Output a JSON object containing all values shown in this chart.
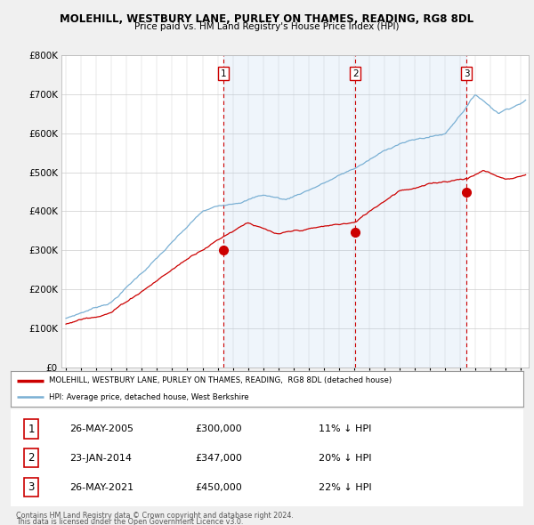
{
  "title": "MOLEHILL, WESTBURY LANE, PURLEY ON THAMES, READING, RG8 8DL",
  "subtitle": "Price paid vs. HM Land Registry's House Price Index (HPI)",
  "legend_line1": "MOLEHILL, WESTBURY LANE, PURLEY ON THAMES, READING,  RG8 8DL (detached house)",
  "legend_line2": "HPI: Average price, detached house, West Berkshire",
  "sale_labels": [
    "1",
    "2",
    "3"
  ],
  "sale_years": [
    2005.4,
    2014.07,
    2021.4
  ],
  "sale_prices": [
    300000,
    347000,
    450000
  ],
  "sale_display": [
    "26-MAY-2005",
    "23-JAN-2014",
    "26-MAY-2021"
  ],
  "sale_amounts": [
    "£300,000",
    "£347,000",
    "£450,000"
  ],
  "sale_hpi": [
    "11% ↓ HPI",
    "20% ↓ HPI",
    "22% ↓ HPI"
  ],
  "footnote1": "Contains HM Land Registry data © Crown copyright and database right 2024.",
  "footnote2": "This data is licensed under the Open Government Licence v3.0.",
  "line_color_red": "#cc0000",
  "line_color_blue": "#7ab0d4",
  "fill_color": "#ddeeff",
  "vline_color": "#cc0000",
  "bg_color": "#f0f0f0",
  "plot_bg": "#ffffff",
  "ylim": [
    0,
    800000
  ],
  "xlim_start": 1994.7,
  "xlim_end": 2025.5
}
